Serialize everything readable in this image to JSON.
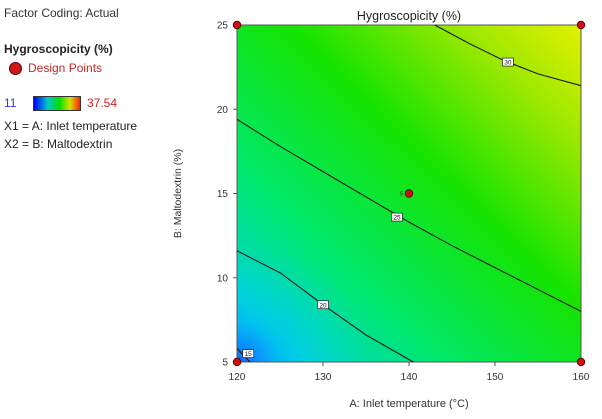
{
  "legend": {
    "factor_coding": "Factor Coding: Actual",
    "response_title": "Hygroscopicity (%)",
    "design_points_label": "Design Points",
    "gradient_min": "11",
    "gradient_max": "37.54",
    "x1_label": "X1 = A: Inlet temperature",
    "x2_label": "X2 = B: Maltodextrin"
  },
  "chart_data": {
    "type": "contour",
    "title": "Hygroscopicity (%)",
    "xlabel": "A: Inlet temperature (°C)",
    "ylabel": "B: Maltodextrin  (%)",
    "xlim": [
      120,
      160
    ],
    "ylim": [
      5,
      25
    ],
    "x_ticks": [
      120,
      130,
      140,
      150,
      160
    ],
    "y_ticks": [
      5,
      10,
      15,
      20,
      25
    ],
    "color_scale": {
      "min": 11,
      "max": 37.54
    },
    "contours": [
      {
        "level": 15,
        "label": "15",
        "points": [
          [
            120,
            5.8
          ],
          [
            121.5,
            5.0
          ]
        ]
      },
      {
        "level": 20,
        "label": "20",
        "points": [
          [
            120,
            11.6
          ],
          [
            125,
            10.3
          ],
          [
            130,
            8.4
          ],
          [
            135,
            6.6
          ],
          [
            140.5,
            5.0
          ]
        ]
      },
      {
        "level": 25,
        "label": "25",
        "points": [
          [
            120,
            19.4
          ],
          [
            125,
            17.8
          ],
          [
            130,
            16.3
          ],
          [
            135,
            14.8
          ],
          [
            140,
            13.3
          ],
          [
            145,
            11.9
          ],
          [
            150,
            10.6
          ],
          [
            155,
            9.3
          ],
          [
            160,
            8.0
          ]
        ]
      },
      {
        "level": 30,
        "label": "30",
        "points": [
          [
            143,
            25.0
          ],
          [
            147,
            23.9
          ],
          [
            151,
            22.9
          ],
          [
            155,
            22.1
          ],
          [
            160,
            21.4
          ]
        ]
      }
    ],
    "design_points": [
      {
        "x": 120,
        "y": 5
      },
      {
        "x": 160,
        "y": 5
      },
      {
        "x": 120,
        "y": 25
      },
      {
        "x": 160,
        "y": 25
      },
      {
        "x": 140,
        "y": 15,
        "label": "5"
      }
    ]
  }
}
